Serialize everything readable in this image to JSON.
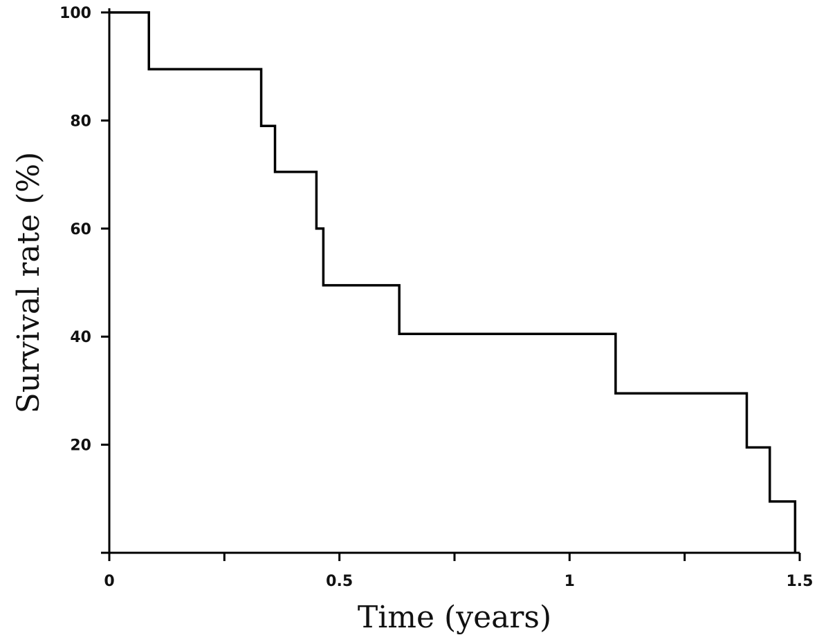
{
  "chart_data": {
    "type": "line",
    "title": "",
    "xlabel": "Time (years)",
    "ylabel": "Survival rate (%)",
    "xlim": [
      0,
      1.5
    ],
    "ylim": [
      0,
      100
    ],
    "xticks": [
      0,
      0.25,
      0.5,
      0.75,
      1,
      1.25,
      1.5
    ],
    "xtick_labels": [
      "0",
      "",
      "0.5",
      "",
      "1",
      "",
      "1.5"
    ],
    "yticks": [
      0,
      20,
      40,
      60,
      80,
      100
    ],
    "ytick_labels": [
      "",
      "20",
      "40",
      "60",
      "80",
      "100"
    ],
    "grid": false,
    "line_style": "step",
    "series": [
      {
        "color": "#000000",
        "x": [
          0,
          0.086,
          0.33,
          0.36,
          0.45,
          0.465,
          0.63,
          1.1,
          1.385,
          1.435,
          1.49
        ],
        "y": [
          100,
          89.5,
          79,
          70.5,
          60,
          49.5,
          40.5,
          29.5,
          19.5,
          9.5,
          0
        ]
      }
    ]
  }
}
